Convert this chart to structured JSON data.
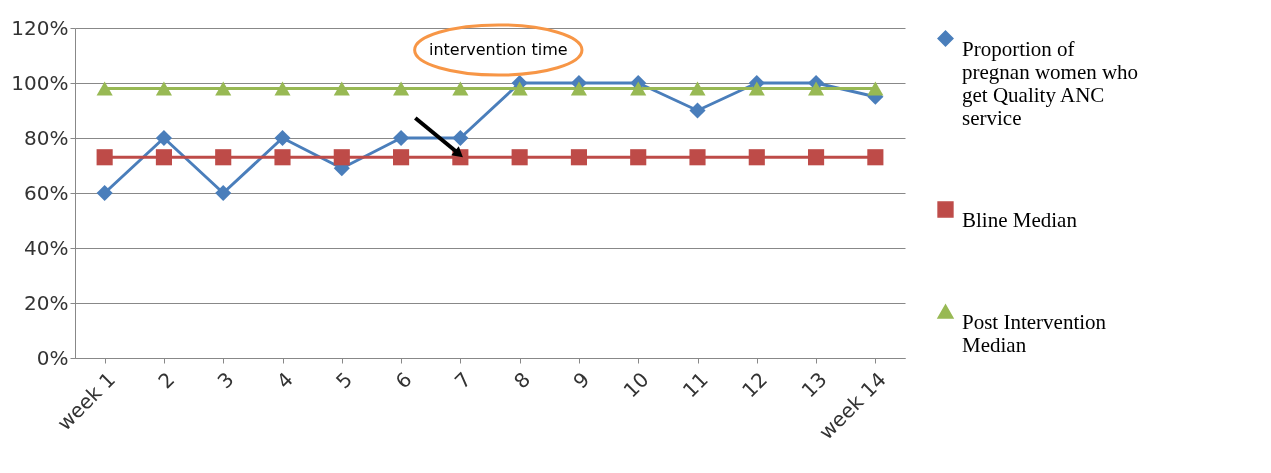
{
  "chart_data": {
    "type": "line",
    "categories": [
      "week 1",
      "2",
      "3",
      "4",
      "5",
      "6",
      "7",
      "8",
      "9",
      "10",
      "11",
      "12",
      "13",
      "week 14"
    ],
    "series": [
      {
        "name": "Proportion of pregnan women who get Quality ANC service",
        "color": "#4a7ebb",
        "marker": "diamond",
        "values": [
          60,
          80,
          60,
          80,
          69,
          80,
          80,
          100,
          100,
          100,
          90,
          100,
          100,
          95
        ]
      },
      {
        "name": "Bline Median",
        "color": "#be4b48",
        "marker": "square",
        "values": [
          73,
          73,
          73,
          73,
          73,
          73,
          73,
          73,
          73,
          73,
          73,
          73,
          73,
          73
        ]
      },
      {
        "name": "Post Intervention Median",
        "color": "#98b954",
        "marker": "triangle",
        "values": [
          98,
          98,
          98,
          98,
          98,
          98,
          98,
          98,
          98,
          98,
          98,
          98,
          98,
          98
        ]
      }
    ],
    "ylim": [
      0,
      120
    ],
    "yticks": [
      {
        "value": 0,
        "label": "0%"
      },
      {
        "value": 20,
        "label": "20%"
      },
      {
        "value": 40,
        "label": "40%"
      },
      {
        "value": 60,
        "label": "60%"
      },
      {
        "value": 80,
        "label": "80%"
      },
      {
        "value": 100,
        "label": "100%"
      },
      {
        "value": 120,
        "label": "120%"
      }
    ],
    "grid": "y",
    "legend": "right",
    "line_style": "solid",
    "annotations": [
      "intervention time"
    ]
  }
}
